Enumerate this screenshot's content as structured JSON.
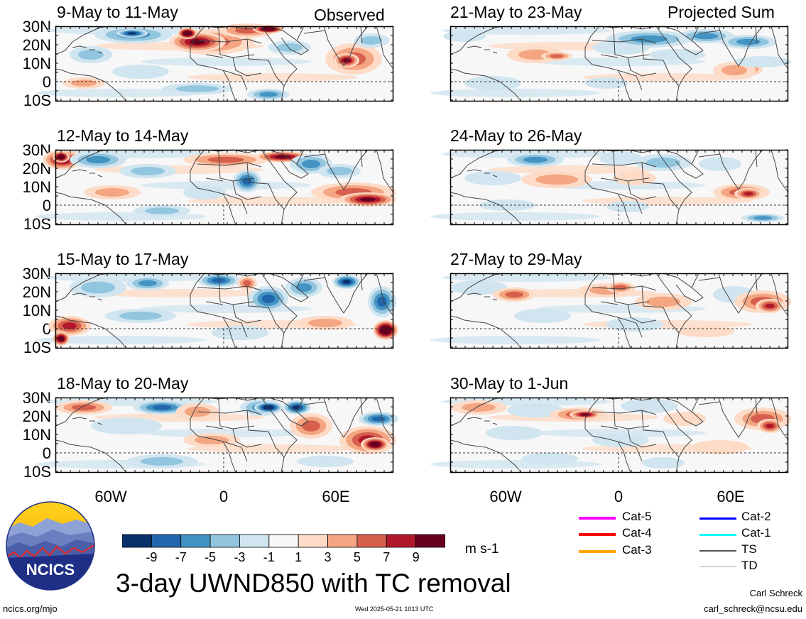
{
  "header": {
    "observed_label": "Observed",
    "projected_label": "Projected Sum"
  },
  "panels": {
    "observed": [
      {
        "title": "9-May to 11-May"
      },
      {
        "title": "12-May to 14-May"
      },
      {
        "title": "15-May to 17-May"
      },
      {
        "title": "18-May to 20-May"
      }
    ],
    "projected": [
      {
        "title": "21-May to 23-May"
      },
      {
        "title": "24-May to 26-May"
      },
      {
        "title": "27-May to 29-May"
      },
      {
        "title": "30-May to 1-Jun"
      }
    ]
  },
  "axes": {
    "lat_labels": [
      "30N",
      "20N",
      "10N",
      "0",
      "10S"
    ],
    "lon_labels": [
      "60W",
      "0",
      "60E"
    ]
  },
  "colorbar": {
    "colors": [
      "#08306b",
      "#2166ac",
      "#4393c3",
      "#92c5de",
      "#d1e5f0",
      "#f7f7f7",
      "#fddbc7",
      "#f4a582",
      "#d6604d",
      "#b2182b",
      "#67001f"
    ],
    "labels": [
      "-9",
      "-7",
      "-5",
      "-3",
      "-1",
      "1",
      "3",
      "5",
      "7",
      "9"
    ],
    "units": "m s-1"
  },
  "legend": {
    "items": [
      {
        "label": "Cat-5",
        "color": "#ff00ff"
      },
      {
        "label": "Cat-4",
        "color": "#ff0000"
      },
      {
        "label": "Cat-3",
        "color": "#ffa500"
      },
      {
        "label": "Cat-2",
        "color": "#0000ff"
      },
      {
        "label": "Cat-1",
        "color": "#00ffff"
      },
      {
        "label": "TS",
        "color": "#555555"
      },
      {
        "label": "TD",
        "color": "#aaaaaa"
      }
    ]
  },
  "logo": {
    "text": "NCICS"
  },
  "footer": {
    "main_title": "3-day UWND850 with TC removal",
    "website": "ncics.org/mjo",
    "timestamp": "Wed 2025-05-21 1013 UTC",
    "author": "Carl Schreck",
    "email": "carl_schreck@ncsu.edu"
  }
}
